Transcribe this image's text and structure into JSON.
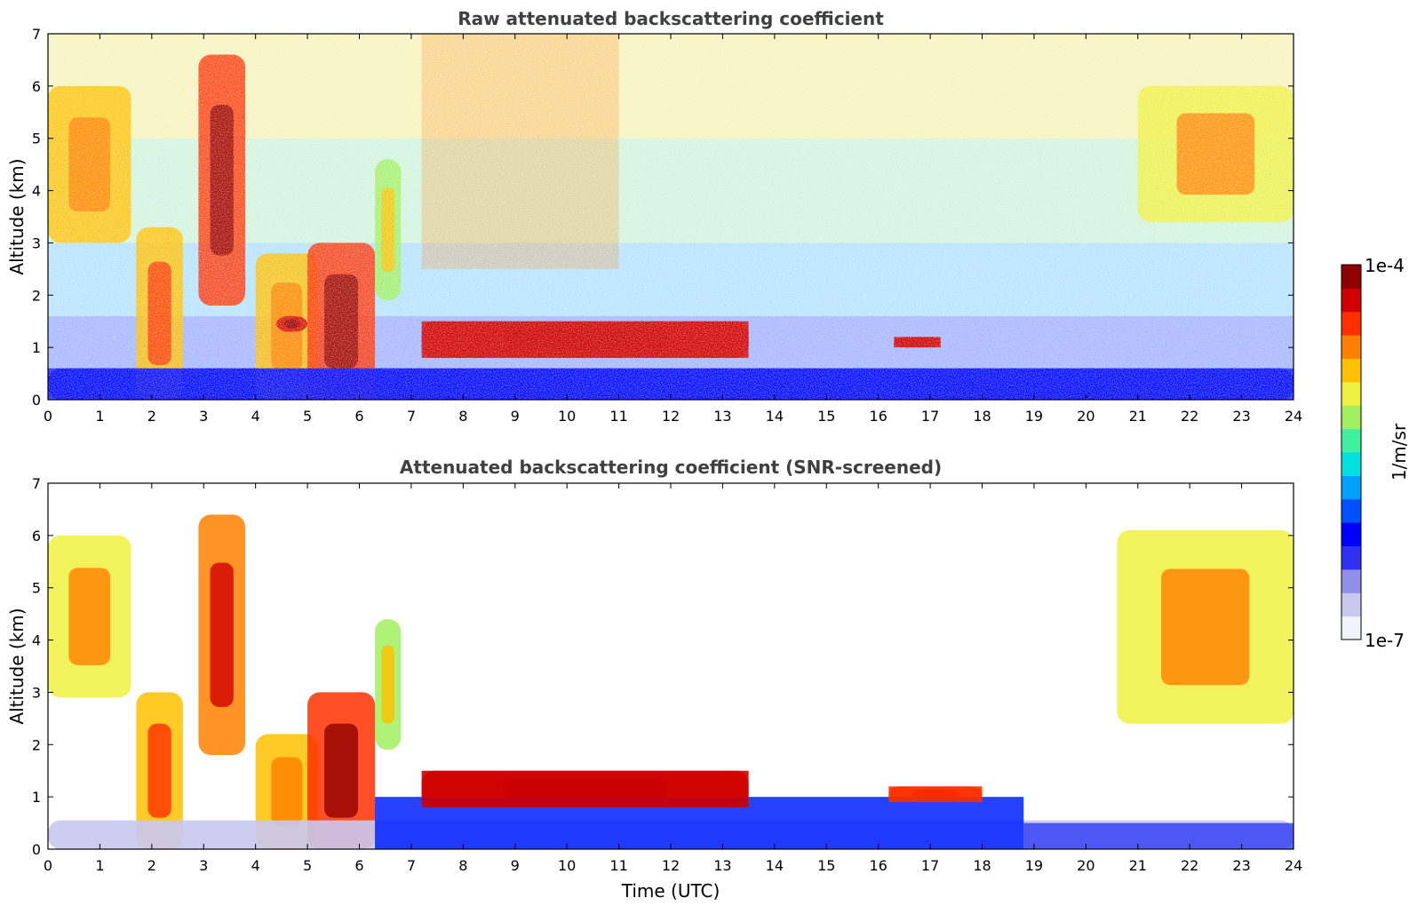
{
  "chart_data": [
    {
      "type": "heatmap",
      "title": "Raw attenuated backscattering coefficient",
      "xlabel": "",
      "ylabel": "Altitude (km)",
      "xlim": [
        0,
        24
      ],
      "ylim": [
        0,
        7
      ],
      "x_ticks": [
        "0",
        "1",
        "2",
        "3",
        "4",
        "5",
        "6",
        "7",
        "8",
        "9",
        "10",
        "11",
        "12",
        "13",
        "14",
        "15",
        "16",
        "17",
        "18",
        "19",
        "20",
        "21",
        "22",
        "23",
        "24"
      ],
      "y_ticks": [
        "0",
        "1",
        "2",
        "3",
        "4",
        "5",
        "6",
        "7"
      ],
      "color_scale": "log",
      "features": [
        {
          "kind": "cloud",
          "time": [
            0.0,
            1.6
          ],
          "alt": [
            3.0,
            6.0
          ],
          "level": 0.7
        },
        {
          "kind": "cloud",
          "time": [
            1.7,
            2.6
          ],
          "alt": [
            0.0,
            3.3
          ],
          "level": 0.75
        },
        {
          "kind": "cloud",
          "time": [
            2.9,
            3.8
          ],
          "alt": [
            1.8,
            6.6
          ],
          "level": 0.85
        },
        {
          "kind": "cloud",
          "time": [
            4.0,
            5.2
          ],
          "alt": [
            0.0,
            2.8
          ],
          "level": 0.7
        },
        {
          "kind": "cloud",
          "time": [
            4.4,
            5.0
          ],
          "alt": [
            1.3,
            1.6
          ],
          "level": 0.95
        },
        {
          "kind": "cloud",
          "time": [
            5.0,
            6.3
          ],
          "alt": [
            0.0,
            3.0
          ],
          "level": 0.85
        },
        {
          "kind": "cloud",
          "time": [
            6.3,
            6.8
          ],
          "alt": [
            1.9,
            4.6
          ],
          "level": 0.6
        },
        {
          "kind": "cloud_layer",
          "time": [
            7.2,
            13.5
          ],
          "alt": [
            0.8,
            1.5
          ],
          "level": 0.95
        },
        {
          "kind": "cloud_layer",
          "time": [
            16.3,
            17.2
          ],
          "alt": [
            1.0,
            1.2
          ],
          "level": 0.9
        },
        {
          "kind": "cloud",
          "time": [
            21.0,
            24.0
          ],
          "alt": [
            3.4,
            6.0
          ],
          "level": 0.65
        },
        {
          "kind": "boundary_layer",
          "time": [
            0.0,
            24.0
          ],
          "alt": [
            0.0,
            0.6
          ],
          "level": 0.2
        }
      ]
    },
    {
      "type": "heatmap",
      "title": "Attenuated backscattering coefficient (SNR-screened)",
      "xlabel": "Time (UTC)",
      "ylabel": "Altitude (km)",
      "xlim": [
        0,
        24
      ],
      "ylim": [
        0,
        7
      ],
      "x_ticks": [
        "0",
        "1",
        "2",
        "3",
        "4",
        "5",
        "6",
        "7",
        "8",
        "9",
        "10",
        "11",
        "12",
        "13",
        "14",
        "15",
        "16",
        "17",
        "18",
        "19",
        "20",
        "21",
        "22",
        "23",
        "24"
      ],
      "y_ticks": [
        "0",
        "1",
        "2",
        "3",
        "4",
        "5",
        "6",
        "7"
      ],
      "color_scale": "log",
      "features": [
        {
          "kind": "cloud",
          "time": [
            0.0,
            1.6
          ],
          "alt": [
            2.9,
            6.0
          ],
          "level": 0.65
        },
        {
          "kind": "cloud",
          "time": [
            1.7,
            2.6
          ],
          "alt": [
            0.0,
            3.0
          ],
          "level": 0.75
        },
        {
          "kind": "cloud",
          "time": [
            2.9,
            3.8
          ],
          "alt": [
            1.8,
            6.4
          ],
          "level": 0.8
        },
        {
          "kind": "cloud",
          "time": [
            4.0,
            5.2
          ],
          "alt": [
            0.0,
            2.2
          ],
          "level": 0.7
        },
        {
          "kind": "cloud",
          "time": [
            5.0,
            6.3
          ],
          "alt": [
            0.0,
            3.0
          ],
          "level": 0.85
        },
        {
          "kind": "cloud",
          "time": [
            6.3,
            6.8
          ],
          "alt": [
            1.9,
            4.4
          ],
          "level": 0.6
        },
        {
          "kind": "cloud_layer",
          "time": [
            7.2,
            13.5
          ],
          "alt": [
            0.8,
            1.5
          ],
          "level": 0.95
        },
        {
          "kind": "cloud_layer",
          "time": [
            16.2,
            18.0
          ],
          "alt": [
            0.9,
            1.2
          ],
          "level": 0.85
        },
        {
          "kind": "cloud",
          "time": [
            20.6,
            24.0
          ],
          "alt": [
            2.4,
            6.1
          ],
          "level": 0.65
        },
        {
          "kind": "boundary_layer",
          "time": [
            0.0,
            24.0
          ],
          "alt": [
            0.0,
            0.55
          ],
          "level": 0.15
        }
      ]
    }
  ],
  "colorbar": {
    "label": "1/m/sr",
    "min_label": "1e-7",
    "max_label": "1e-4",
    "colors": [
      "#f2f2fa",
      "#c8c8f0",
      "#9090e8",
      "#3030f0",
      "#0000ff",
      "#0050ff",
      "#00a0ff",
      "#00e0e0",
      "#40f0a0",
      "#a0f060",
      "#f0f040",
      "#ffc000",
      "#ff8000",
      "#ff3000",
      "#d00000",
      "#900000"
    ]
  }
}
